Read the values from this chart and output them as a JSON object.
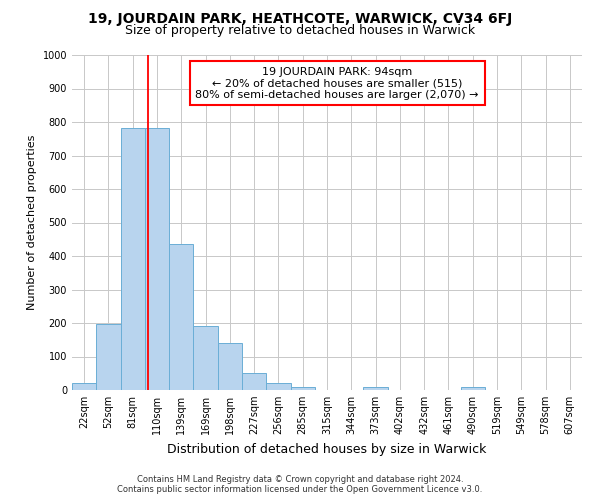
{
  "title": "19, JOURDAIN PARK, HEATHCOTE, WARWICK, CV34 6FJ",
  "subtitle": "Size of property relative to detached houses in Warwick",
  "xlabel": "Distribution of detached houses by size in Warwick",
  "ylabel": "Number of detached properties",
  "bar_labels": [
    "22sqm",
    "52sqm",
    "81sqm",
    "110sqm",
    "139sqm",
    "169sqm",
    "198sqm",
    "227sqm",
    "256sqm",
    "285sqm",
    "315sqm",
    "344sqm",
    "373sqm",
    "402sqm",
    "432sqm",
    "461sqm",
    "490sqm",
    "519sqm",
    "549sqm",
    "578sqm",
    "607sqm"
  ],
  "bar_heights": [
    20,
    197,
    783,
    783,
    435,
    192,
    140,
    50,
    20,
    10,
    0,
    0,
    10,
    0,
    0,
    0,
    10,
    0,
    0,
    0,
    0
  ],
  "bar_color": "#b8d4ee",
  "bar_edge_color": "#6aaed6",
  "ylim": [
    0,
    1000
  ],
  "yticks": [
    0,
    100,
    200,
    300,
    400,
    500,
    600,
    700,
    800,
    900,
    1000
  ],
  "annotation_line1": "19 JOURDAIN PARK: 94sqm",
  "annotation_line2": "← 20% of detached houses are smaller (515)",
  "annotation_line3": "80% of semi-detached houses are larger (2,070) →",
  "footer_line1": "Contains HM Land Registry data © Crown copyright and database right 2024.",
  "footer_line2": "Contains public sector information licensed under the Open Government Licence v3.0.",
  "background_color": "#ffffff",
  "grid_color": "#c8c8c8",
  "title_fontsize": 10,
  "subtitle_fontsize": 9,
  "ylabel_fontsize": 8,
  "xlabel_fontsize": 9,
  "tick_fontsize": 7,
  "footer_fontsize": 6
}
